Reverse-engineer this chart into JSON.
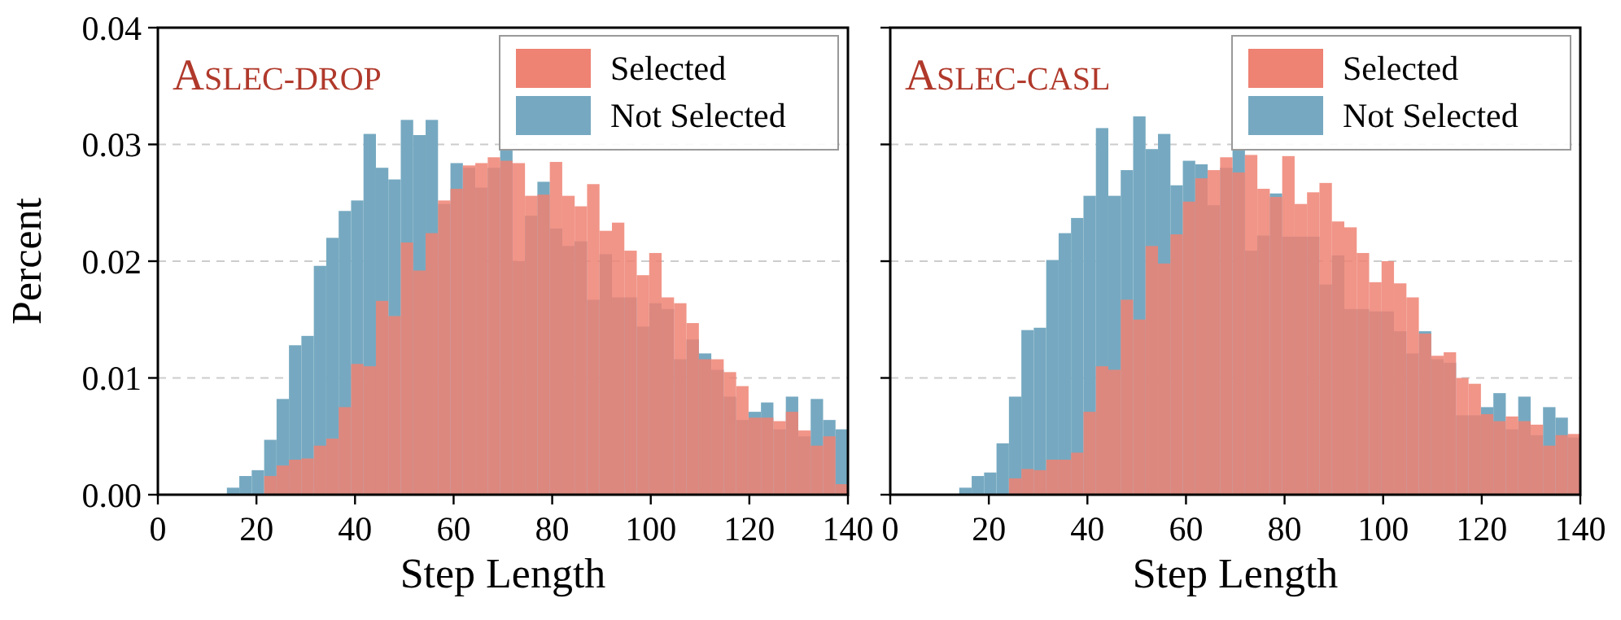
{
  "chart_data": [
    {
      "type": "histogram",
      "title": "ASLEC-DROP",
      "xlabel": "Step Length",
      "ylabel": "Percent",
      "bins": [
        14,
        16.52,
        19.04,
        21.56,
        24.08,
        26.6,
        29.12,
        31.64,
        34.16,
        36.68,
        39.2,
        41.72,
        44.24,
        46.76,
        49.28,
        51.8,
        54.32,
        56.84,
        59.36,
        61.88,
        64.4,
        66.92,
        69.44,
        71.96,
        74.48,
        77,
        79.52,
        82.04,
        84.56,
        87.08,
        89.6,
        92.12,
        94.64,
        97.16,
        99.68,
        102.2,
        104.72,
        107.24,
        109.76,
        112.28,
        114.8,
        117.32,
        119.84,
        122.36,
        124.88,
        127.4,
        129.92,
        132.44,
        134.96,
        137.48,
        140
      ],
      "series": [
        {
          "name": "Selected",
          "color": "#ee8273",
          "values": [
            0,
            0,
            0,
            0.0016,
            0.0025,
            0.003,
            0.0031,
            0.0042,
            0.0048,
            0.0075,
            0.0112,
            0.011,
            0.0166,
            0.0153,
            0.0216,
            0.0192,
            0.0224,
            0.0252,
            0.0262,
            0.0282,
            0.0284,
            0.0289,
            0.0286,
            0.0284,
            0.0256,
            0.0257,
            0.0285,
            0.0256,
            0.0247,
            0.0266,
            0.0226,
            0.0233,
            0.0209,
            0.0188,
            0.0207,
            0.0169,
            0.0164,
            0.0147,
            0.0116,
            0.0116,
            0.0105,
            0.0093,
            0.0066,
            0.0066,
            0.0063,
            0.0071,
            0.0055,
            0.0042,
            0.005,
            0.0009
          ]
        },
        {
          "name": "Not Selected",
          "color": "#76a9c1",
          "values": [
            0.0006,
            0.0016,
            0.0021,
            0.0047,
            0.0082,
            0.0128,
            0.0136,
            0.0196,
            0.022,
            0.0243,
            0.0252,
            0.0309,
            0.028,
            0.027,
            0.0321,
            0.0308,
            0.0321,
            0.0249,
            0.0284,
            0.028,
            0.0263,
            0.028,
            0.0295,
            0.02,
            0.0239,
            0.0268,
            0.0228,
            0.0213,
            0.0217,
            0.0167,
            0.0206,
            0.0169,
            0.0169,
            0.0144,
            0.0164,
            0.0159,
            0.0116,
            0.0133,
            0.0121,
            0.0107,
            0.0084,
            0.0064,
            0.0071,
            0.0079,
            0.0056,
            0.0084,
            0.005,
            0.0082,
            0.0064,
            0.0056
          ]
        }
      ],
      "xlim": [
        0,
        140
      ],
      "xticks": [
        0,
        20,
        40,
        60,
        80,
        100,
        120,
        140
      ],
      "ylim": [
        0,
        0.04
      ],
      "yticks": [
        {
          "value": 0,
          "label": "0.00"
        },
        0.01,
        0.02,
        0.03,
        {
          "value": 0.04,
          "label": "0.04"
        }
      ],
      "grid": "y",
      "legend": "top right"
    },
    {
      "type": "histogram",
      "title": "ASLEC-CASL",
      "xlabel": "Step Length",
      "bins": [
        14,
        16.52,
        19.04,
        21.56,
        24.08,
        26.6,
        29.12,
        31.64,
        34.16,
        36.68,
        39.2,
        41.72,
        44.24,
        46.76,
        49.28,
        51.8,
        54.32,
        56.84,
        59.36,
        61.88,
        64.4,
        66.92,
        69.44,
        71.96,
        74.48,
        77,
        79.52,
        82.04,
        84.56,
        87.08,
        89.6,
        92.12,
        94.64,
        97.16,
        99.68,
        102.2,
        104.72,
        107.24,
        109.76,
        112.28,
        114.8,
        117.32,
        119.84,
        122.36,
        124.88,
        127.4,
        129.92,
        132.44,
        134.96,
        137.48,
        140
      ],
      "series": [
        {
          "name": "Selected",
          "color": "#ee8273",
          "values": [
            0,
            0,
            0,
            0,
            0.0014,
            0.0022,
            0.0021,
            0.003,
            0.003,
            0.0036,
            0.0071,
            0.011,
            0.0107,
            0.0167,
            0.015,
            0.0213,
            0.0198,
            0.0223,
            0.0251,
            0.0271,
            0.0278,
            0.0289,
            0.0276,
            0.0291,
            0.0262,
            0.0255,
            0.029,
            0.0249,
            0.0259,
            0.0267,
            0.0234,
            0.0229,
            0.0207,
            0.0182,
            0.02,
            0.0181,
            0.0169,
            0.0138,
            0.0119,
            0.0122,
            0.01,
            0.0095,
            0.0069,
            0.0063,
            0.0067,
            0.0063,
            0.006,
            0.0042,
            0.0051,
            0.0052
          ]
        },
        {
          "name": "Not Selected",
          "color": "#76a9c1",
          "values": [
            0.0006,
            0.0016,
            0.0019,
            0.0044,
            0.0084,
            0.0141,
            0.0143,
            0.0201,
            0.0224,
            0.0237,
            0.0256,
            0.0314,
            0.0256,
            0.0278,
            0.0324,
            0.0296,
            0.0309,
            0.0265,
            0.0286,
            0.0283,
            0.0248,
            0.028,
            0.0296,
            0.0209,
            0.0222,
            0.0258,
            0.0221,
            0.0221,
            0.0221,
            0.018,
            0.0205,
            0.0159,
            0.0159,
            0.0157,
            0.0157,
            0.014,
            0.0121,
            0.014,
            0.0116,
            0.0113,
            0.0068,
            0.0068,
            0.0075,
            0.0087,
            0.0056,
            0.0084,
            0.0051,
            0.0075,
            0.0066,
            0.0049
          ]
        }
      ],
      "xlim": [
        0,
        140
      ],
      "xticks": [
        0,
        20,
        40,
        60,
        80,
        100,
        120,
        140
      ],
      "ylim": [
        0,
        0.04
      ],
      "yticks": [
        0,
        0.01,
        0.02,
        0.03,
        0.04
      ],
      "grid": "y",
      "legend": "top right",
      "tick_labels": "x"
    }
  ]
}
